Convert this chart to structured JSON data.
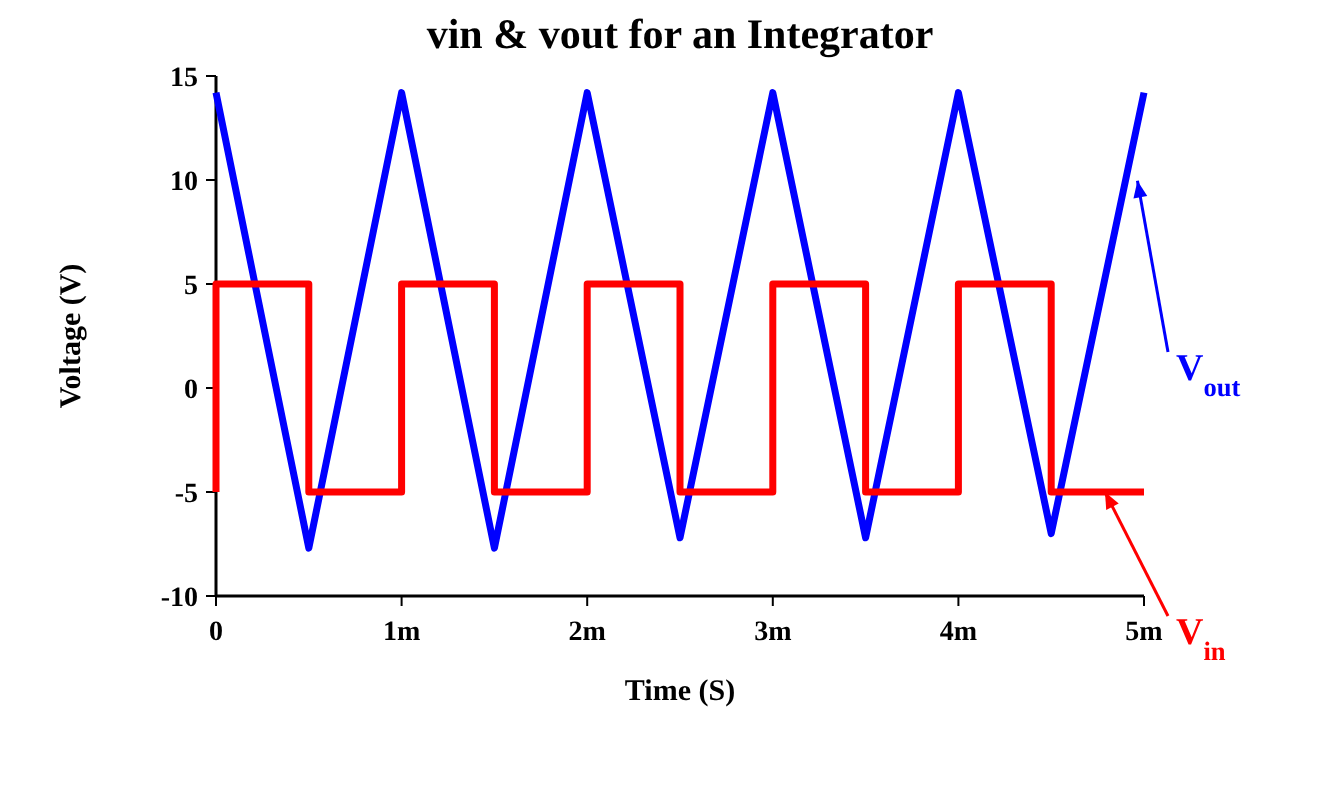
{
  "chart_data": {
    "type": "line",
    "title": "vin & vout for an Integrator",
    "xlabel": "Time (S)",
    "ylabel": "Voltage (V)",
    "xlim": [
      0,
      5
    ],
    "xticks": [
      0,
      {
        "value": 1,
        "label": "1m"
      },
      {
        "value": 2,
        "label": "2m"
      },
      {
        "value": 3,
        "label": "3m"
      },
      {
        "value": 4,
        "label": "4m"
      },
      {
        "value": 5,
        "label": "5m"
      }
    ],
    "ylim": [
      -10,
      15
    ],
    "yticks": [
      -10,
      -5,
      0,
      5,
      10,
      15
    ],
    "grid": false,
    "series": [
      {
        "name": "V$_{out}$",
        "color": "#0000ff",
        "x": [
          0,
          0.5,
          1,
          1.5,
          2,
          2.5,
          3,
          3.5,
          4,
          4.5,
          5
        ],
        "values": [
          14.2,
          -7.7,
          14.2,
          -7.7,
          14.2,
          -7.2,
          14.2,
          -7.2,
          14.2,
          -7,
          14.2
        ]
      },
      {
        "name": "V$_{in}$",
        "type": "step",
        "color": "#ff0000",
        "x": [
          0,
          0,
          0.5,
          1,
          1.5,
          2,
          2.5,
          3,
          3.5,
          4,
          4.5,
          5
        ],
        "values": [
          -5,
          5,
          -5,
          5,
          -5,
          5,
          -5,
          5,
          -5,
          5,
          -5,
          -5
        ]
      }
    ]
  }
}
